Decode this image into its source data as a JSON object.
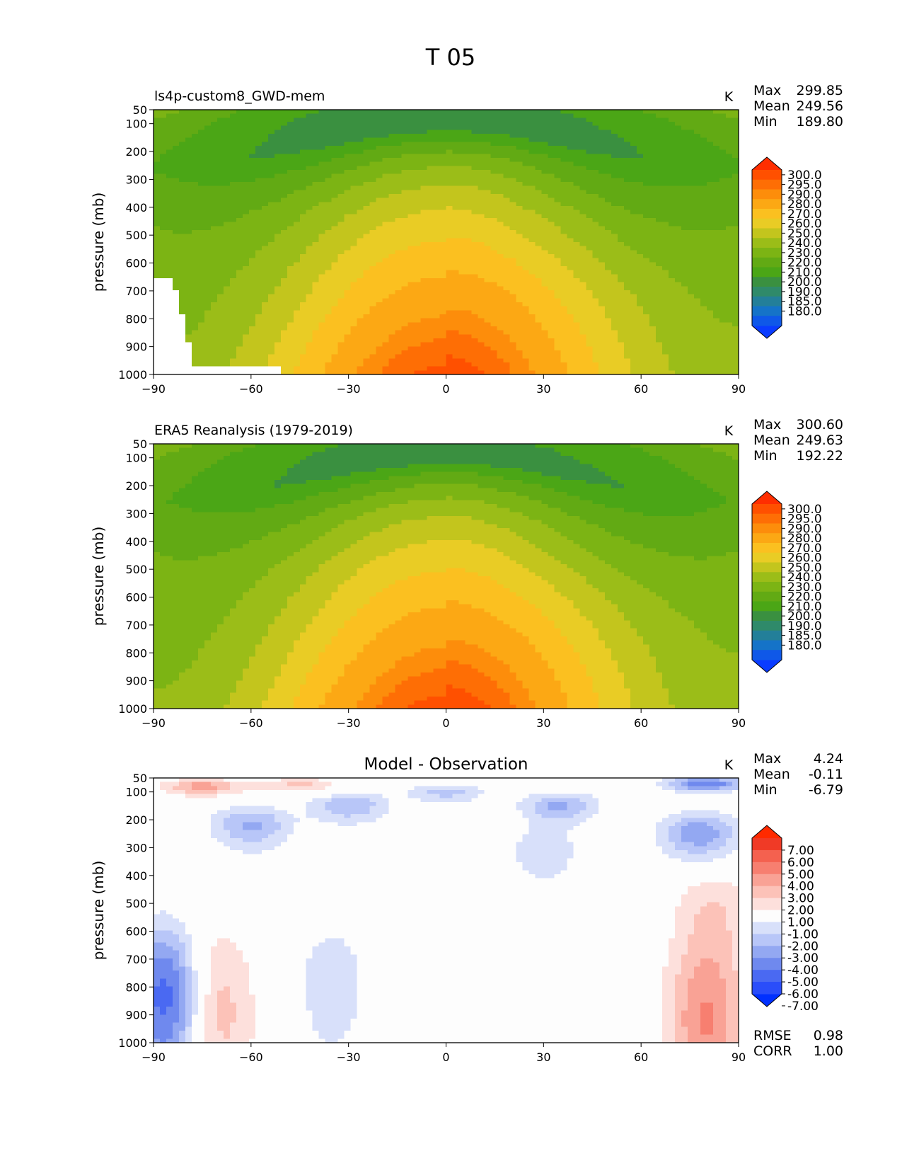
{
  "figure_title": "T 05",
  "colors": {
    "abs_cmap": [
      "#0a3cff",
      "#0f58e8",
      "#1573c8",
      "#237f99",
      "#2f8a6a",
      "#3a9040",
      "#4ba616",
      "#62aa14",
      "#7cb414",
      "#9bbd18",
      "#c3c51d",
      "#e9cc25",
      "#fbc020",
      "#fca814",
      "#fd8d0b",
      "#fe6e05",
      "#ff5000",
      "#ff2e00"
    ],
    "diff_cmap": [
      "#0030ff",
      "#2a4dfa",
      "#4a69f2",
      "#6f89ee",
      "#93a8f2",
      "#b8c6f8",
      "#d8e0fa",
      "#fdfdfd",
      "#fde0dc",
      "#fcc2b8",
      "#f9a295",
      "#f77f70",
      "#f4614f",
      "#f03a26",
      "#ff2a00"
    ]
  },
  "chart_data": [
    {
      "type": "contour",
      "title": "ls4p-custom8_GWD-mem",
      "units": "K",
      "ylabel": "pressure (mb)",
      "xlim": [
        -90,
        90
      ],
      "ylim": [
        1000,
        50
      ],
      "xticks": [
        "−90",
        "−60",
        "−30",
        "0",
        "30",
        "60",
        "90"
      ],
      "yticks": [
        "50",
        "100",
        "200",
        "300",
        "400",
        "500",
        "600",
        "700",
        "800",
        "900",
        "1000"
      ],
      "stats": [
        {
          "label": "Max",
          "value": "299.85"
        },
        {
          "label": "Mean",
          "value": "249.56"
        },
        {
          "label": "Min",
          "value": "189.80"
        }
      ],
      "colorbar_levels": [
        "300.0",
        "295.0",
        "290.0",
        "280.0",
        "270.0",
        "260.0",
        "250.0",
        "240.0",
        "230.0",
        "220.0",
        "210.0",
        "200.0",
        "190.0",
        "185.0",
        "180.0"
      ],
      "model": {
        "surface": 300,
        "lapse_to": 218,
        "tropopause_min": 200,
        "bias": 0,
        "missing_south": true
      }
    },
    {
      "type": "contour",
      "title": "ERA5 Reanalysis (1979-2019)",
      "units": "K",
      "ylabel": "pressure (mb)",
      "xlim": [
        -90,
        90
      ],
      "ylim": [
        1000,
        50
      ],
      "xticks": [
        "−90",
        "−60",
        "−30",
        "0",
        "30",
        "60",
        "90"
      ],
      "yticks": [
        "50",
        "100",
        "200",
        "300",
        "400",
        "500",
        "600",
        "700",
        "800",
        "900",
        "1000"
      ],
      "stats": [
        {
          "label": "Max",
          "value": "300.60"
        },
        {
          "label": "Mean",
          "value": "249.63"
        },
        {
          "label": "Min",
          "value": "192.22"
        }
      ],
      "colorbar_levels": [
        "300.0",
        "295.0",
        "290.0",
        "280.0",
        "270.0",
        "260.0",
        "250.0",
        "240.0",
        "230.0",
        "220.0",
        "210.0",
        "200.0",
        "190.0",
        "185.0",
        "180.0"
      ],
      "model": {
        "surface": 300.6,
        "lapse_to": 218,
        "tropopause_min": 202,
        "bias": 0,
        "missing_south": false
      }
    },
    {
      "type": "contour",
      "title": "Model - Observation",
      "units": "K",
      "ylabel": "pressure (mb)",
      "xlim": [
        -90,
        90
      ],
      "ylim": [
        1000,
        50
      ],
      "xticks": [
        "−90",
        "−60",
        "−30",
        "0",
        "30",
        "60",
        "90"
      ],
      "yticks": [
        "50",
        "100",
        "200",
        "300",
        "400",
        "500",
        "600",
        "700",
        "800",
        "900",
        "1000"
      ],
      "stats": [
        {
          "label": "Max",
          "value": "4.24"
        },
        {
          "label": "Mean",
          "value": "-0.11"
        },
        {
          "label": "Min",
          "value": "-6.79"
        }
      ],
      "colorbar_levels": [
        "7.00",
        "6.00",
        "5.00",
        "4.00",
        "3.00",
        "2.00",
        "1.00",
        "-1.00",
        "-2.00",
        "-3.00",
        "-4.00",
        "-5.00",
        "-6.00",
        "-7.00"
      ],
      "extra_stats": [
        {
          "label": "RMSE",
          "value": "0.98"
        },
        {
          "label": "CORR",
          "value": "1.00"
        }
      ],
      "blobs": [
        {
          "lat": -75,
          "p": 80,
          "amp": 3.5
        },
        {
          "lat": -45,
          "p": 75,
          "amp": 2.2
        },
        {
          "lat": -60,
          "p": 220,
          "amp": -3.2
        },
        {
          "lat": -30,
          "p": 150,
          "amp": -3.0
        },
        {
          "lat": 0,
          "p": 100,
          "amp": -2.4
        },
        {
          "lat": 35,
          "p": 150,
          "amp": -3.2
        },
        {
          "lat": 30,
          "p": 320,
          "amp": -1.6
        },
        {
          "lat": 80,
          "p": 70,
          "amp": -5.0
        },
        {
          "lat": 78,
          "p": 250,
          "amp": -3.8
        },
        {
          "lat": 82,
          "p": 520,
          "amp": 2.0
        },
        {
          "lat": 80,
          "p": 930,
          "amp": 4.0
        },
        {
          "lat": -85,
          "p": 830,
          "amp": -6.5
        },
        {
          "lat": -75,
          "p": 790,
          "amp": 2.4
        },
        {
          "lat": -35,
          "p": 790,
          "amp": -1.6
        },
        {
          "lat": -70,
          "p": 960,
          "amp": 1.6
        }
      ]
    }
  ]
}
